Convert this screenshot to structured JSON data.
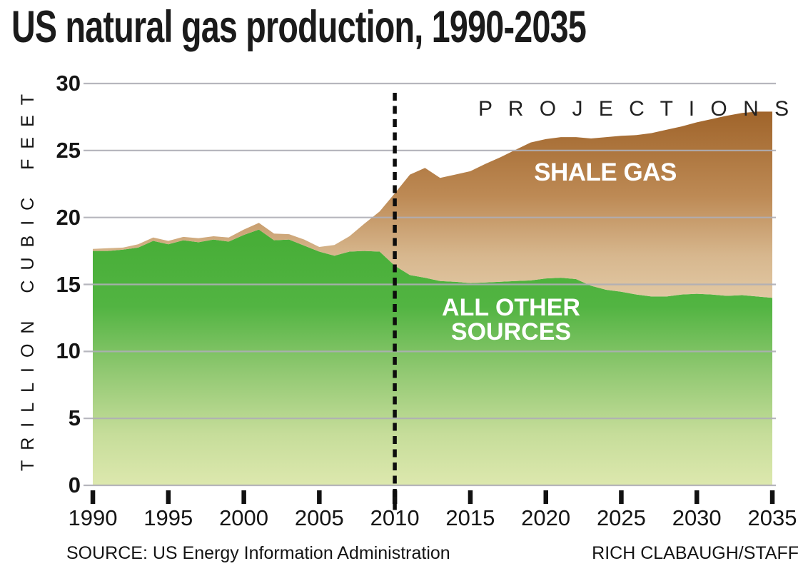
{
  "title": "US natural gas production, 1990-2035",
  "source": "SOURCE: US Energy Information Administration",
  "credit": "RICH CLABAUGH/STAFF",
  "annotations": {
    "projections": "P R O J E C T I O N S",
    "shale_gas": "SHALE GAS",
    "all_other_line1": "ALL OTHER",
    "all_other_line2": "SOURCES"
  },
  "colors": {
    "green_top": "#46ad36",
    "green_mid": "#90c871",
    "green_bottom": "#dde8ae",
    "brown_top": "#9e6228",
    "brown_mid": "#bd8a55",
    "brown_bottom": "#e3cba7",
    "gridline": "#aeaeb6",
    "tick": "#111111",
    "dashed_line": "#0d0d0d"
  },
  "chart_data": {
    "type": "area",
    "stacked": true,
    "title": "US natural gas production, 1990-2035",
    "xlabel": "",
    "ylabel": "TRILLION CUBIC FEET",
    "ylim": [
      0,
      30
    ],
    "yticks": [
      0,
      5,
      10,
      15,
      20,
      25,
      30
    ],
    "xticks": [
      1990,
      1995,
      2000,
      2005,
      2010,
      2015,
      2020,
      2025,
      2030,
      2035
    ],
    "grid": "horizontal",
    "legend_position": "labels-inside-areas",
    "projection_divider_x": 2010,
    "years": [
      1990,
      1991,
      1992,
      1993,
      1994,
      1995,
      1996,
      1997,
      1998,
      1999,
      2000,
      2001,
      2002,
      2003,
      2004,
      2005,
      2006,
      2007,
      2008,
      2009,
      2010,
      2011,
      2012,
      2013,
      2014,
      2015,
      2016,
      2017,
      2018,
      2019,
      2020,
      2021,
      2022,
      2023,
      2024,
      2025,
      2026,
      2027,
      2028,
      2029,
      2030,
      2031,
      2032,
      2033,
      2034,
      2035
    ],
    "series": [
      {
        "name": "ALL OTHER SOURCES",
        "values": [
          17.5,
          17.5,
          17.6,
          17.75,
          18.25,
          18.0,
          18.3,
          18.15,
          18.35,
          18.2,
          18.7,
          19.1,
          18.3,
          18.35,
          17.9,
          17.45,
          17.15,
          17.45,
          17.5,
          17.45,
          16.4,
          15.7,
          15.5,
          15.25,
          15.2,
          15.1,
          15.15,
          15.2,
          15.25,
          15.3,
          15.45,
          15.5,
          15.4,
          14.9,
          14.6,
          14.45,
          14.25,
          14.1,
          14.1,
          14.25,
          14.3,
          14.25,
          14.15,
          14.2,
          14.1,
          14.0
        ]
      },
      {
        "name": "SHALE GAS",
        "values": [
          0.15,
          0.2,
          0.15,
          0.25,
          0.25,
          0.25,
          0.25,
          0.3,
          0.25,
          0.3,
          0.4,
          0.5,
          0.5,
          0.4,
          0.45,
          0.35,
          0.8,
          1.15,
          2.05,
          3.0,
          5.4,
          7.5,
          8.2,
          7.7,
          8.0,
          8.35,
          8.85,
          9.3,
          9.8,
          10.3,
          10.4,
          10.5,
          10.6,
          11.0,
          11.4,
          11.65,
          11.9,
          12.2,
          12.45,
          12.55,
          12.8,
          13.1,
          13.45,
          13.6,
          13.8,
          13.9
        ]
      }
    ]
  }
}
